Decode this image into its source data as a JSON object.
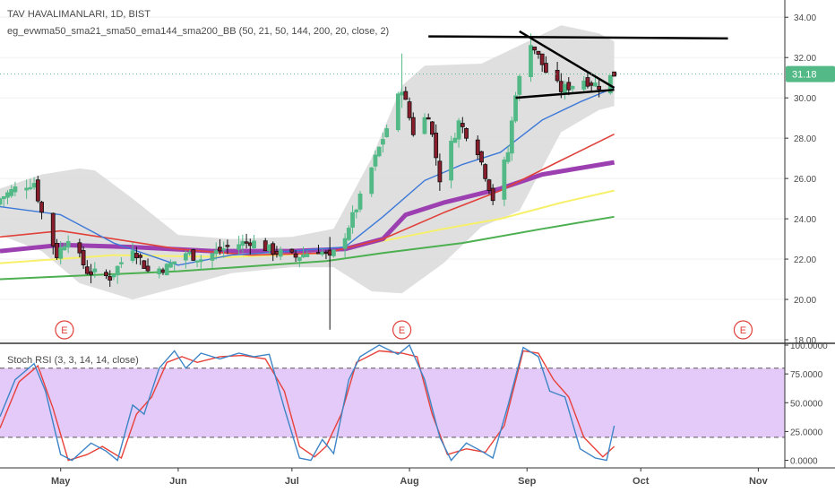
{
  "header": {
    "symbol_title": "TAV HAVALIMANLARI, 1D, BIST",
    "indicator_label": "eg_evwma50_sma21_sma50_ema144_sma200_BB (50, 21, 50, 144, 200, 20, close, 2)"
  },
  "price_axis": {
    "ticks": [
      "34.00",
      "32.00",
      "30.00",
      "28.00",
      "26.00",
      "24.00",
      "22.00",
      "20.00",
      "18.00"
    ],
    "last_price": "31.18"
  },
  "rsi_pane": {
    "label": "Stoch RSI (3, 3, 14, 14, close)",
    "ticks": [
      "100.0000",
      "75.0000",
      "50.0000",
      "25.0000",
      "0.0000"
    ]
  },
  "time_axis": {
    "months": [
      "May",
      "Jun",
      "Jul",
      "Aug",
      "Sep",
      "Oct",
      "Nov"
    ]
  },
  "earnings_marker": "E",
  "colors": {
    "up": "#53b987",
    "down": "#eb4d5c",
    "sma21": "#3c78d8",
    "sma50": "#e0413a",
    "evwma": "#9b3fb1",
    "ema144": "#f6f06a",
    "sma200": "#4caf50",
    "bb_fill": "#d9d9d9",
    "k_line": "#3d85c6",
    "d_line": "#e8413a",
    "rsi_band": "#d9b8f7",
    "last_price": "#53b987",
    "earnings": "#e0413a"
  },
  "chart_data": [
    {
      "type": "candlestick",
      "title": "TAV HAVALIMANLARI, 1D, BIST",
      "x_range": [
        "2019-04-15",
        "2019-11-08"
      ],
      "ylim": [
        18,
        34.5
      ],
      "y_ticks": [
        18,
        20,
        22,
        24,
        26,
        28,
        30,
        32,
        34
      ],
      "last_price": 31.18,
      "earnings_dates": [
        "2019-05-02",
        "2019-07-30",
        "2019-10-28"
      ],
      "anchors": [
        [
          "2019-04-15",
          25.0
        ],
        [
          "2019-04-19",
          25.5
        ],
        [
          "2019-04-24",
          25.8
        ],
        [
          "2019-04-26",
          24.3
        ],
        [
          "2019-04-30",
          22.2
        ],
        [
          "2019-05-03",
          23.1
        ],
        [
          "2019-05-08",
          21.4
        ],
        [
          "2019-05-14",
          21.1
        ],
        [
          "2019-05-20",
          22.6
        ],
        [
          "2019-05-24",
          21.4
        ],
        [
          "2019-05-29",
          21.6
        ],
        [
          "2019-06-03",
          22.3
        ],
        [
          "2019-06-07",
          22.0
        ],
        [
          "2019-06-14",
          22.6
        ],
        [
          "2019-06-20",
          22.9
        ],
        [
          "2019-06-26",
          22.4
        ],
        [
          "2019-07-02",
          22.1
        ],
        [
          "2019-07-08",
          22.5
        ],
        [
          "2019-07-11",
          22.0
        ],
        [
          "2019-07-15",
          23.2
        ],
        [
          "2019-07-19",
          25.0
        ],
        [
          "2019-07-24",
          27.5
        ],
        [
          "2019-07-30",
          30.5
        ],
        [
          "2019-08-02",
          28.3
        ],
        [
          "2019-08-06",
          29.2
        ],
        [
          "2019-08-09",
          26.0
        ],
        [
          "2019-08-14",
          28.8
        ],
        [
          "2019-08-19",
          27.4
        ],
        [
          "2019-08-23",
          25.0
        ],
        [
          "2019-08-27",
          27.3
        ],
        [
          "2019-08-29",
          30.3
        ],
        [
          "2019-09-02",
          32.8
        ],
        [
          "2019-09-06",
          31.3
        ],
        [
          "2019-09-10",
          30.4
        ],
        [
          "2019-09-16",
          30.9
        ],
        [
          "2019-09-20",
          30.6
        ],
        [
          "2019-09-24",
          31.18
        ]
      ],
      "wick_extremes": [
        {
          "date": "2019-07-11",
          "low": 18.5,
          "high": 23.1
        },
        {
          "date": "2019-07-30",
          "low": 29.5,
          "high": 32.2
        },
        {
          "date": "2019-09-02",
          "low": 30.8,
          "high": 33.2
        }
      ],
      "series": [
        {
          "kind": "sma21",
          "values": [
            [
              "2019-04-15",
              24.6
            ],
            [
              "2019-05-01",
              24.2
            ],
            [
              "2019-05-15",
              22.8
            ],
            [
              "2019-06-01",
              21.7
            ],
            [
              "2019-06-15",
              22.2
            ],
            [
              "2019-07-01",
              22.4
            ],
            [
              "2019-07-15",
              22.6
            ],
            [
              "2019-07-25",
              24.1
            ],
            [
              "2019-08-05",
              25.9
            ],
            [
              "2019-08-15",
              26.7
            ],
            [
              "2019-08-25",
              27.3
            ],
            [
              "2019-09-05",
              28.9
            ],
            [
              "2019-09-15",
              29.8
            ],
            [
              "2019-09-24",
              30.5
            ]
          ]
        },
        {
          "kind": "sma50",
          "values": [
            [
              "2019-04-15",
              23.1
            ],
            [
              "2019-05-01",
              23.4
            ],
            [
              "2019-05-15",
              23.0
            ],
            [
              "2019-06-01",
              22.5
            ],
            [
              "2019-06-20",
              22.2
            ],
            [
              "2019-07-10",
              22.3
            ],
            [
              "2019-07-25",
              23.0
            ],
            [
              "2019-08-10",
              24.3
            ],
            [
              "2019-08-25",
              25.4
            ],
            [
              "2019-09-10",
              26.9
            ],
            [
              "2019-09-24",
              28.2
            ]
          ]
        },
        {
          "kind": "evwma50",
          "values": [
            [
              "2019-04-15",
              22.4
            ],
            [
              "2019-05-01",
              22.7
            ],
            [
              "2019-05-20",
              22.6
            ],
            [
              "2019-06-10",
              22.4
            ],
            [
              "2019-07-01",
              22.4
            ],
            [
              "2019-07-15",
              22.5
            ],
            [
              "2019-07-25",
              23.0
            ],
            [
              "2019-07-31",
              24.2
            ],
            [
              "2019-08-10",
              24.8
            ],
            [
              "2019-08-25",
              25.5
            ],
            [
              "2019-09-05",
              26.2
            ],
            [
              "2019-09-24",
              26.8
            ]
          ]
        },
        {
          "kind": "ema144",
          "values": [
            [
              "2019-04-15",
              21.8
            ],
            [
              "2019-05-15",
              22.2
            ],
            [
              "2019-06-15",
              22.1
            ],
            [
              "2019-07-10",
              22.3
            ],
            [
              "2019-07-25",
              22.9
            ],
            [
              "2019-08-10",
              23.5
            ],
            [
              "2019-08-25",
              24.0
            ],
            [
              "2019-09-10",
              24.8
            ],
            [
              "2019-09-24",
              25.4
            ]
          ]
        },
        {
          "kind": "sma200",
          "values": [
            [
              "2019-04-15",
              21.0
            ],
            [
              "2019-06-01",
              21.4
            ],
            [
              "2019-07-10",
              21.9
            ],
            [
              "2019-07-25",
              22.3
            ],
            [
              "2019-08-15",
              22.8
            ],
            [
              "2019-09-05",
              23.5
            ],
            [
              "2019-09-24",
              24.1
            ]
          ]
        },
        {
          "kind": "bb_upper",
          "values": [
            [
              "2019-04-15",
              25.5
            ],
            [
              "2019-04-26",
              26.2
            ],
            [
              "2019-05-06",
              26.5
            ],
            [
              "2019-05-10",
              26.4
            ],
            [
              "2019-05-20",
              25.0
            ],
            [
              "2019-06-01",
              23.2
            ],
            [
              "2019-06-15",
              23.0
            ],
            [
              "2019-07-01",
              23.1
            ],
            [
              "2019-07-12",
              23.5
            ],
            [
              "2019-07-22",
              27.0
            ],
            [
              "2019-07-30",
              30.6
            ],
            [
              "2019-08-05",
              31.6
            ],
            [
              "2019-08-20",
              31.7
            ],
            [
              "2019-08-30",
              32.6
            ],
            [
              "2019-09-10",
              33.6
            ],
            [
              "2019-09-20",
              33.2
            ],
            [
              "2019-09-24",
              32.8
            ]
          ]
        },
        {
          "kind": "bb_lower",
          "values": [
            [
              "2019-04-15",
              23.2
            ],
            [
              "2019-04-26",
              22.4
            ],
            [
              "2019-05-06",
              20.8
            ],
            [
              "2019-05-20",
              20.0
            ],
            [
              "2019-06-01",
              20.6
            ],
            [
              "2019-06-15",
              21.3
            ],
            [
              "2019-07-01",
              21.6
            ],
            [
              "2019-07-12",
              21.6
            ],
            [
              "2019-07-22",
              20.4
            ],
            [
              "2019-07-30",
              20.3
            ],
            [
              "2019-08-10",
              21.8
            ],
            [
              "2019-08-20",
              23.6
            ],
            [
              "2019-08-30",
              24.4
            ],
            [
              "2019-09-10",
              28.3
            ],
            [
              "2019-09-20",
              29.4
            ],
            [
              "2019-09-24",
              29.6
            ]
          ]
        }
      ],
      "trendlines": [
        {
          "from": [
            "2019-08-06",
            33.05
          ],
          "to": [
            "2019-10-24",
            32.95
          ]
        },
        {
          "from": [
            "2019-08-30",
            33.3
          ],
          "to": [
            "2019-09-24",
            30.5
          ]
        },
        {
          "from": [
            "2019-08-29",
            30.0
          ],
          "to": [
            "2019-09-24",
            30.4
          ]
        }
      ]
    },
    {
      "type": "line",
      "title": "Stoch RSI (3, 3, 14, 14, close)",
      "ylim": [
        -5,
        100
      ],
      "y_ticks": [
        0,
        25,
        50,
        75,
        100
      ],
      "bands": [
        20,
        80
      ],
      "series": [
        {
          "kind": "k",
          "values": [
            [
              "2019-04-15",
              38
            ],
            [
              "2019-04-19",
              70
            ],
            [
              "2019-04-24",
              84
            ],
            [
              "2019-04-27",
              60
            ],
            [
              "2019-05-01",
              5
            ],
            [
              "2019-05-04",
              0
            ],
            [
              "2019-05-09",
              15
            ],
            [
              "2019-05-13",
              8
            ],
            [
              "2019-05-16",
              0
            ],
            [
              "2019-05-20",
              48
            ],
            [
              "2019-05-23",
              40
            ],
            [
              "2019-05-27",
              80
            ],
            [
              "2019-05-31",
              95
            ],
            [
              "2019-06-03",
              80
            ],
            [
              "2019-06-07",
              93
            ],
            [
              "2019-06-12",
              88
            ],
            [
              "2019-06-17",
              93
            ],
            [
              "2019-06-21",
              90
            ],
            [
              "2019-06-25",
              92
            ],
            [
              "2019-06-29",
              45
            ],
            [
              "2019-07-03",
              2
            ],
            [
              "2019-07-06",
              0
            ],
            [
              "2019-07-09",
              18
            ],
            [
              "2019-07-12",
              6
            ],
            [
              "2019-07-16",
              70
            ],
            [
              "2019-07-19",
              90
            ],
            [
              "2019-07-24",
              100
            ],
            [
              "2019-07-29",
              92
            ],
            [
              "2019-08-01",
              100
            ],
            [
              "2019-08-05",
              70
            ],
            [
              "2019-08-09",
              20
            ],
            [
              "2019-08-12",
              0
            ],
            [
              "2019-08-16",
              15
            ],
            [
              "2019-08-20",
              8
            ],
            [
              "2019-08-23",
              2
            ],
            [
              "2019-08-27",
              48
            ],
            [
              "2019-08-31",
              98
            ],
            [
              "2019-09-04",
              90
            ],
            [
              "2019-09-07",
              60
            ],
            [
              "2019-09-11",
              55
            ],
            [
              "2019-09-15",
              10
            ],
            [
              "2019-09-19",
              2
            ],
            [
              "2019-09-22",
              0
            ],
            [
              "2019-09-24",
              30
            ]
          ]
        },
        {
          "kind": "d",
          "values": [
            [
              "2019-04-15",
              28
            ],
            [
              "2019-04-20",
              68
            ],
            [
              "2019-04-25",
              82
            ],
            [
              "2019-04-29",
              45
            ],
            [
              "2019-05-03",
              0
            ],
            [
              "2019-05-08",
              5
            ],
            [
              "2019-05-12",
              12
            ],
            [
              "2019-05-17",
              2
            ],
            [
              "2019-05-21",
              40
            ],
            [
              "2019-05-25",
              55
            ],
            [
              "2019-05-29",
              85
            ],
            [
              "2019-06-02",
              90
            ],
            [
              "2019-06-06",
              85
            ],
            [
              "2019-06-12",
              90
            ],
            [
              "2019-06-18",
              91
            ],
            [
              "2019-06-24",
              88
            ],
            [
              "2019-06-29",
              60
            ],
            [
              "2019-07-03",
              12
            ],
            [
              "2019-07-07",
              3
            ],
            [
              "2019-07-10",
              12
            ],
            [
              "2019-07-14",
              40
            ],
            [
              "2019-07-18",
              85
            ],
            [
              "2019-07-24",
              95
            ],
            [
              "2019-07-30",
              93
            ],
            [
              "2019-08-03",
              90
            ],
            [
              "2019-08-07",
              40
            ],
            [
              "2019-08-11",
              5
            ],
            [
              "2019-08-16",
              10
            ],
            [
              "2019-08-21",
              7
            ],
            [
              "2019-08-26",
              30
            ],
            [
              "2019-08-31",
              95
            ],
            [
              "2019-09-04",
              93
            ],
            [
              "2019-09-08",
              70
            ],
            [
              "2019-09-12",
              55
            ],
            [
              "2019-09-16",
              20
            ],
            [
              "2019-09-21",
              3
            ],
            [
              "2019-09-24",
              12
            ]
          ]
        }
      ]
    }
  ]
}
